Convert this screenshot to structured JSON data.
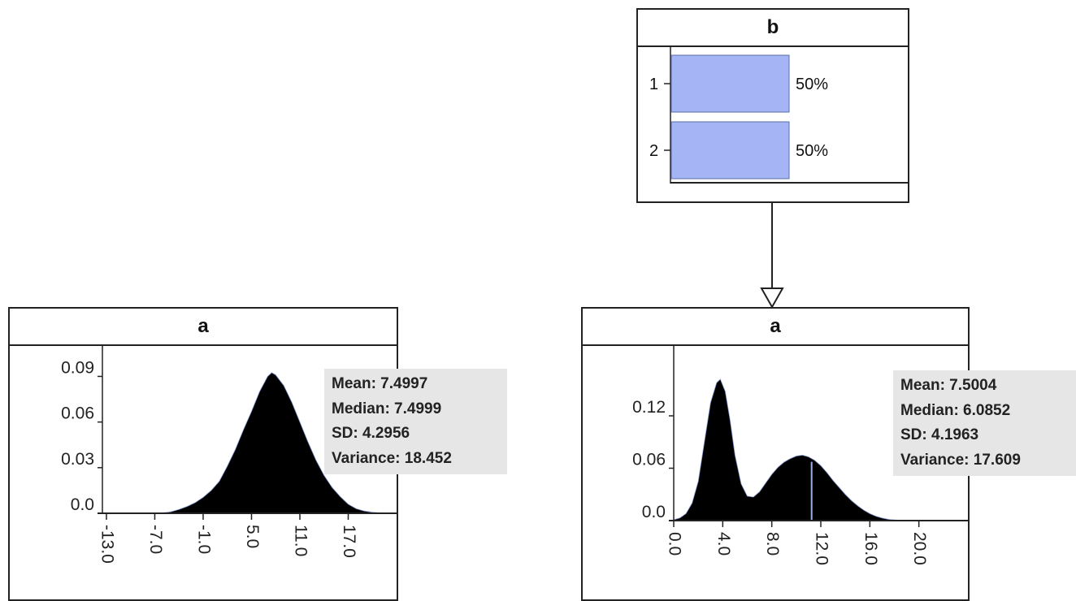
{
  "node_b": {
    "title": "b",
    "states": [
      {
        "label": "1",
        "probability": 0.5,
        "percent_text": "50%"
      },
      {
        "label": "2",
        "probability": 0.5,
        "percent_text": "50%"
      }
    ],
    "bar_color": "#a4b4f4"
  },
  "node_a_left": {
    "title": "a",
    "stats": {
      "mean": "Mean: 7.4997",
      "median": "Median: 7.4999",
      "sd": "SD: 4.2956",
      "variance": "Variance: 18.452"
    }
  },
  "node_a_right": {
    "title": "a",
    "stats": {
      "mean": "Mean: 7.5004",
      "median": "Median: 6.0852",
      "sd": "SD: 4.1963",
      "variance": "Variance: 17.609"
    }
  },
  "chart_data": [
    {
      "type": "area",
      "title": "a",
      "x_tick_labels": [
        "-13.0",
        "-7.0",
        "-1.0",
        "5.0",
        "11.0",
        "17.0"
      ],
      "x_ticks": [
        -13,
        -7,
        -1,
        5,
        11,
        17
      ],
      "y_tick_labels": [
        "0.09",
        "0.06",
        "0.03",
        "0.0"
      ],
      "y_ticks": [
        0.09,
        0.06,
        0.03,
        0.0
      ],
      "xlim": [
        -13.5,
        23.0
      ],
      "ylim": [
        0,
        0.11
      ],
      "x": [
        -6.5,
        -5,
        -4,
        -3,
        -2,
        -1,
        0,
        1,
        2,
        3,
        4,
        5,
        6,
        7,
        7.5,
        8,
        9,
        10,
        11,
        12,
        13,
        14,
        15,
        16,
        17,
        18,
        19,
        20,
        21,
        21.5
      ],
      "y": [
        0.0,
        0.001,
        0.0025,
        0.0045,
        0.007,
        0.0105,
        0.015,
        0.021,
        0.031,
        0.042,
        0.055,
        0.067,
        0.08,
        0.09,
        0.0925,
        0.091,
        0.084,
        0.073,
        0.06,
        0.047,
        0.035,
        0.025,
        0.017,
        0.011,
        0.006,
        0.003,
        0.0015,
        0.0007,
        0.0002,
        0.0
      ],
      "fill": "#000000"
    },
    {
      "type": "area",
      "title": "a",
      "x_tick_labels": [
        "0.0",
        "4.0",
        "8.0",
        "12.0",
        "16.0",
        "20.0"
      ],
      "x_ticks": [
        0,
        4,
        8,
        12,
        16,
        20
      ],
      "y_tick_labels": [
        "0.12",
        "0.06",
        "0.0"
      ],
      "y_ticks": [
        0.12,
        0.06,
        0.0
      ],
      "xlim": [
        0,
        24.0
      ],
      "ylim": [
        0,
        0.2
      ],
      "x": [
        0,
        0.5,
        1,
        1.5,
        2,
        2.5,
        3,
        3.5,
        3.8,
        4.2,
        4.6,
        5,
        5.5,
        6,
        6.5,
        7,
        7.5,
        8,
        8.5,
        9,
        9.5,
        10,
        10.5,
        11,
        11.5,
        12,
        12.5,
        13,
        13.5,
        14,
        14.5,
        15,
        15.5,
        16,
        16.5,
        17,
        17.5,
        18,
        18.5,
        19
      ],
      "y": [
        0.001,
        0.003,
        0.008,
        0.02,
        0.045,
        0.09,
        0.135,
        0.158,
        0.162,
        0.148,
        0.115,
        0.075,
        0.042,
        0.028,
        0.027,
        0.033,
        0.043,
        0.053,
        0.061,
        0.067,
        0.071,
        0.074,
        0.075,
        0.073,
        0.069,
        0.063,
        0.055,
        0.046,
        0.038,
        0.03,
        0.023,
        0.017,
        0.012,
        0.008,
        0.005,
        0.003,
        0.0015,
        0.0008,
        0.0003,
        0.0
      ],
      "median_marker": 11.25,
      "fill": "#000000",
      "marker_color": "#9db0e8"
    }
  ]
}
